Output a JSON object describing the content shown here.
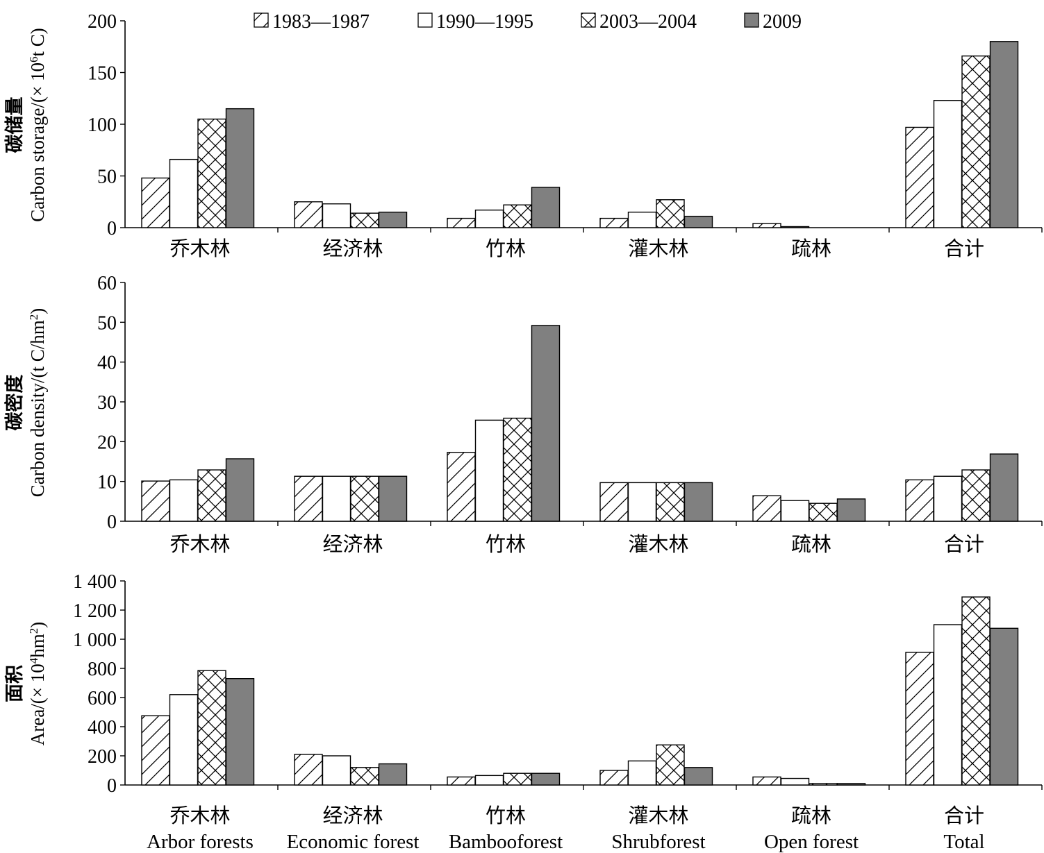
{
  "legend": [
    {
      "label": "1983—1987",
      "style": "hatch-diag"
    },
    {
      "label": "1990—1995",
      "style": "white"
    },
    {
      "label": "2003—2004",
      "style": "cross-hatch"
    },
    {
      "label": "2009",
      "style": "gray-fill"
    }
  ],
  "colors": {
    "fill_2009": "#808080",
    "stroke": "#000000",
    "background": "#ffffff"
  },
  "categories_zh": [
    "乔木林",
    "经济林",
    "竹林",
    "灌木林",
    "疏林",
    "合计"
  ],
  "categories_en": [
    "Arbor forests",
    "Economic forest",
    "Bambooforest",
    "Shrubforest",
    "Open forest",
    "Total"
  ],
  "chart_data": [
    {
      "type": "bar",
      "ylabel_zh": "碳储量",
      "ylabel_en_prefix": "Carbon storage/(× 10",
      "ylabel_en_sup": "6",
      "ylabel_en_suffix": "t C)",
      "ylim": [
        0,
        200
      ],
      "yticks": [
        0,
        50,
        100,
        150,
        200
      ],
      "ytick_labels": [
        "0",
        "50",
        "100",
        "150",
        "200"
      ],
      "categories": [
        "乔木林",
        "经济林",
        "竹林",
        "灌木林",
        "疏林",
        "合计"
      ],
      "series": [
        {
          "name": "1983—1987",
          "values": [
            48,
            25,
            9,
            9,
            4,
            97
          ]
        },
        {
          "name": "1990—1995",
          "values": [
            66,
            23,
            17,
            15,
            1,
            123
          ]
        },
        {
          "name": "2003—2004",
          "values": [
            105,
            14,
            22,
            27,
            0,
            166
          ]
        },
        {
          "name": "2009",
          "values": [
            115,
            15,
            39,
            11,
            0,
            180
          ]
        }
      ]
    },
    {
      "type": "bar",
      "ylabel_zh": "碳密度",
      "ylabel_en_prefix": "Carbon density/(t C/hm",
      "ylabel_en_sup": "2",
      "ylabel_en_suffix": ")",
      "ylim": [
        0,
        60
      ],
      "yticks": [
        0,
        10,
        20,
        30,
        40,
        50,
        60
      ],
      "ytick_labels": [
        "0",
        "10",
        "20",
        "30",
        "40",
        "50",
        "60"
      ],
      "categories": [
        "乔木林",
        "经济林",
        "竹林",
        "灌木林",
        "疏林",
        "合计"
      ],
      "series": [
        {
          "name": "1983—1987",
          "values": [
            10.1,
            11.3,
            17.3,
            9.7,
            6.4,
            10.4
          ]
        },
        {
          "name": "1990—1995",
          "values": [
            10.4,
            11.3,
            25.4,
            9.7,
            5.2,
            11.3
          ]
        },
        {
          "name": "2003—2004",
          "values": [
            12.9,
            11.3,
            25.9,
            9.7,
            4.5,
            12.9
          ]
        },
        {
          "name": "2009",
          "values": [
            15.7,
            11.3,
            49.2,
            9.7,
            5.6,
            16.9
          ]
        }
      ]
    },
    {
      "type": "bar",
      "ylabel_zh": "面积",
      "ylabel_en_prefix": "Area/(× 10",
      "ylabel_en_sup": "4",
      "ylabel_en_suffix": "hm",
      "ylabel_en_sup2": "2",
      "ylabel_en_suffix2": ")",
      "ylim": [
        0,
        1400
      ],
      "yticks": [
        0,
        200,
        400,
        600,
        800,
        1000,
        1200,
        1400
      ],
      "ytick_labels": [
        "0",
        "200",
        "400",
        "600",
        "800",
        "1 000",
        "1 200",
        "1 400"
      ],
      "categories": [
        "乔木林",
        "经济林",
        "竹林",
        "灌木林",
        "疏林",
        "合计"
      ],
      "series": [
        {
          "name": "1983—1987",
          "values": [
            475,
            210,
            55,
            100,
            55,
            910
          ]
        },
        {
          "name": "1990—1995",
          "values": [
            620,
            200,
            65,
            165,
            45,
            1100
          ]
        },
        {
          "name": "2003—2004",
          "values": [
            785,
            120,
            80,
            275,
            10,
            1290
          ]
        },
        {
          "name": "2009",
          "values": [
            730,
            145,
            80,
            120,
            10,
            1075
          ]
        }
      ]
    }
  ]
}
